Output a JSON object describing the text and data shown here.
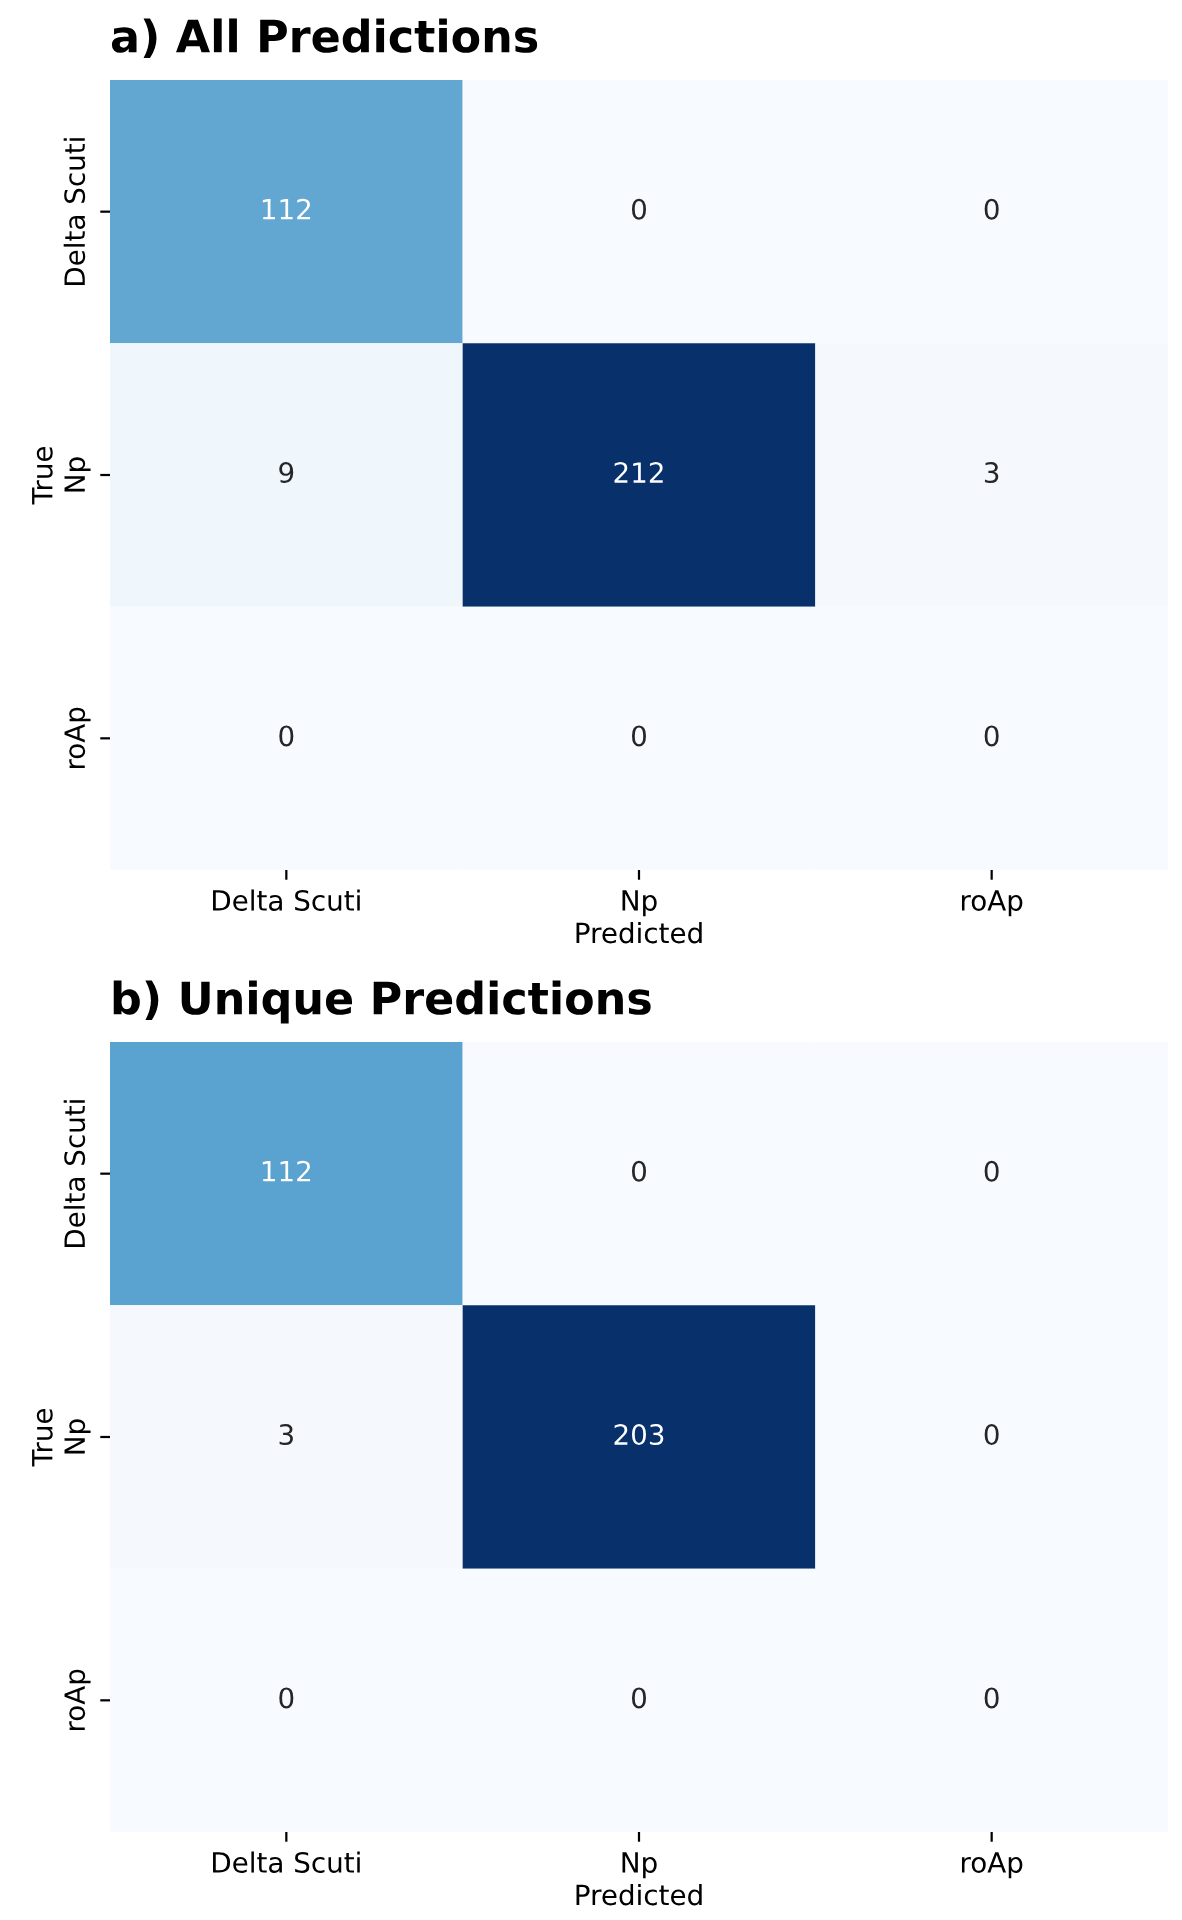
{
  "chart_data": [
    {
      "type": "heatmap",
      "title": "a) All Predictions",
      "xlabel": "Predicted",
      "ylabel": "True",
      "categories": [
        "Delta Scuti",
        "Np",
        "roAp"
      ],
      "y_categories": [
        "Delta Scuti",
        "Np",
        "roAp"
      ],
      "cells": [
        [
          112,
          0,
          0
        ],
        [
          9,
          212,
          3
        ],
        [
          0,
          0,
          0
        ]
      ],
      "data_labels": true
    },
    {
      "type": "heatmap",
      "title": "b) Unique Predictions",
      "xlabel": "Predicted",
      "ylabel": "True",
      "categories": [
        "Delta Scuti",
        "Np",
        "roAp"
      ],
      "y_categories": [
        "Delta Scuti",
        "Np",
        "roAp"
      ],
      "cells": [
        [
          112,
          0,
          0
        ],
        [
          3,
          203,
          0
        ],
        [
          0,
          0,
          0
        ]
      ],
      "data_labels": true
    }
  ]
}
